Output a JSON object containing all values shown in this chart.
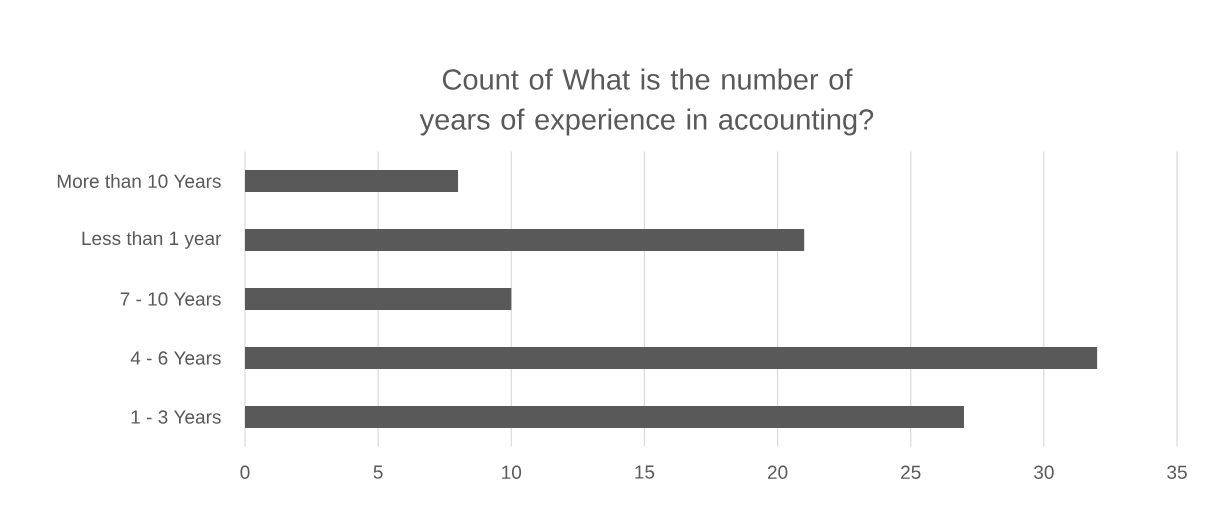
{
  "chart_data": {
    "type": "bar",
    "orientation": "horizontal",
    "title": "Count of What is the number of years of experience in accounting?",
    "categories": [
      "More than 10 Years",
      "Less than 1 year",
      "7 - 10 Years",
      "4 - 6 Years",
      "1 - 3 Years"
    ],
    "values": [
      8,
      21,
      10,
      32,
      27
    ],
    "color": "#595959",
    "xlim": [
      0,
      35
    ],
    "xticks": [
      0,
      5,
      10,
      15,
      20,
      25,
      30,
      35
    ],
    "grid": "x"
  }
}
